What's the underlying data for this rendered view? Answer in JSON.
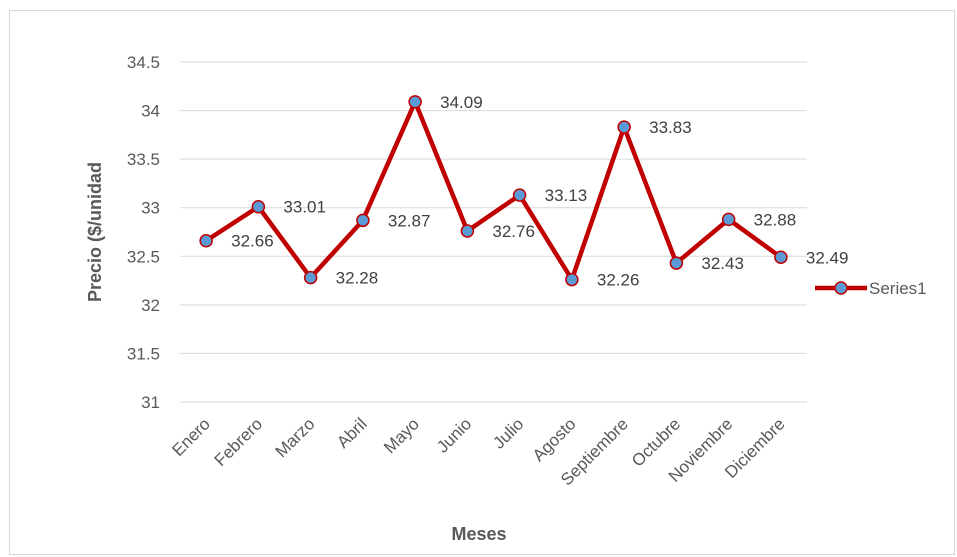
{
  "chart_data": {
    "type": "line",
    "title": "",
    "xlabel": "Meses",
    "ylabel": "Precio ($/unidad",
    "categories": [
      "Enero",
      "Febrero",
      "Marzo",
      "Abril",
      "Mayo",
      "Junio",
      "Julio",
      "Agosto",
      "Septiembre",
      "Octubre",
      "Noviembre",
      "Diciembre"
    ],
    "series": [
      {
        "name": "Series1",
        "values": [
          32.66,
          33.01,
          32.28,
          32.87,
          34.09,
          32.76,
          33.13,
          32.26,
          33.83,
          32.43,
          32.88,
          32.49
        ],
        "data_labels": [
          "32.66",
          "33.01",
          "32.28",
          "32.87",
          "34.09",
          "32.76",
          "33.13",
          "32.26",
          "33.83",
          "32.43",
          "32.88",
          "32.49"
        ]
      }
    ],
    "ylim": [
      31,
      34.5
    ],
    "yticks": [
      "31",
      "31.5",
      "32",
      "32.5",
      "33",
      "33.5",
      "34",
      "34.5"
    ],
    "grid": true,
    "legend_position": "right",
    "colors": {
      "line": "#c00000",
      "marker_fill": "#5b9bd5",
      "marker_edge": "#c00000",
      "grid": "#d9d9d9"
    }
  }
}
